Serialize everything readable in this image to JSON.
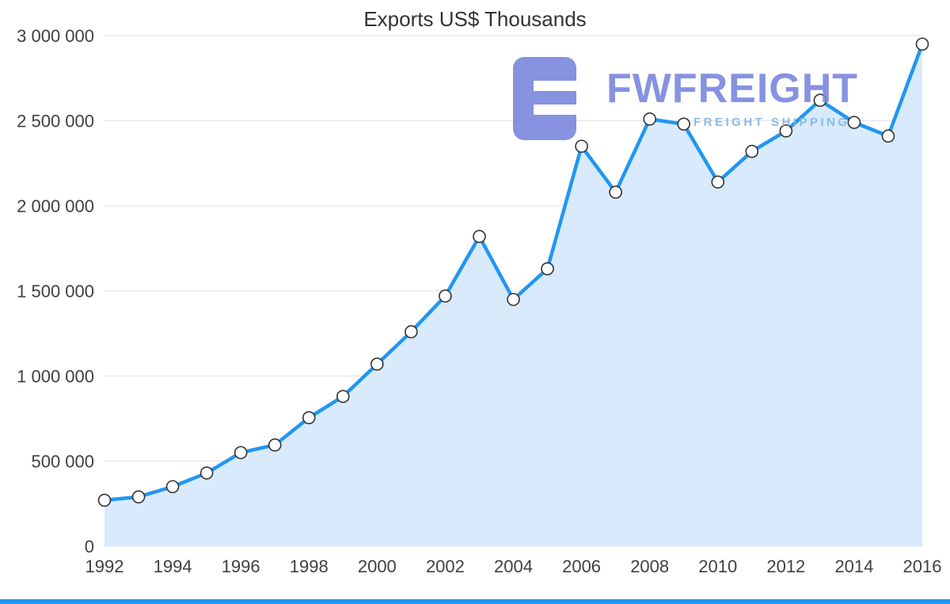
{
  "page": {
    "background_color": "#ffffff",
    "accent_bar_color": "#2196f3"
  },
  "chart_data": {
    "type": "area",
    "title": "Exports US$ Thousands",
    "x": [
      1992,
      1993,
      1994,
      1995,
      1996,
      1997,
      1998,
      1999,
      2000,
      2001,
      2002,
      2003,
      2004,
      2005,
      2006,
      2007,
      2008,
      2009,
      2010,
      2011,
      2012,
      2013,
      2014,
      2015,
      2016
    ],
    "values": [
      270000,
      290000,
      350000,
      430000,
      550000,
      595000,
      755000,
      880000,
      1070000,
      1260000,
      1470000,
      1820000,
      1450000,
      1630000,
      2350000,
      2080000,
      2510000,
      2480000,
      2140000,
      2320000,
      2440000,
      2620000,
      2490000,
      2410000,
      2950000
    ],
    "ylim": [
      0,
      3000000
    ],
    "yticks": {
      "values": [
        0,
        500000,
        1000000,
        1500000,
        2000000,
        2500000,
        3000000
      ],
      "labels": [
        "0",
        "500 000",
        "1 000 000",
        "1 500 000",
        "2 000 000",
        "2 500 000",
        "3 000 000"
      ]
    },
    "xtick_labels": [
      "1992",
      "1994",
      "1996",
      "1998",
      "2000",
      "2002",
      "2004",
      "2006",
      "2008",
      "2010",
      "2012",
      "2014",
      "2016"
    ],
    "grid": true,
    "legend": "none",
    "colors": {
      "line": "#2196f3",
      "area_fill": "#d8eafb",
      "marker_fill": "#ffffff",
      "marker_stroke": "#333333",
      "gridline": "#e2e2e2",
      "axis_text": "#404040",
      "title_text": "#333333"
    }
  },
  "watermark": {
    "brand": "FWFREIGHT",
    "tagline": "FREIGHT SHIPPING",
    "logo": "fwfreight-block-logo",
    "brand_color": "#7b87dd",
    "tagline_color": "#82b4e2"
  }
}
